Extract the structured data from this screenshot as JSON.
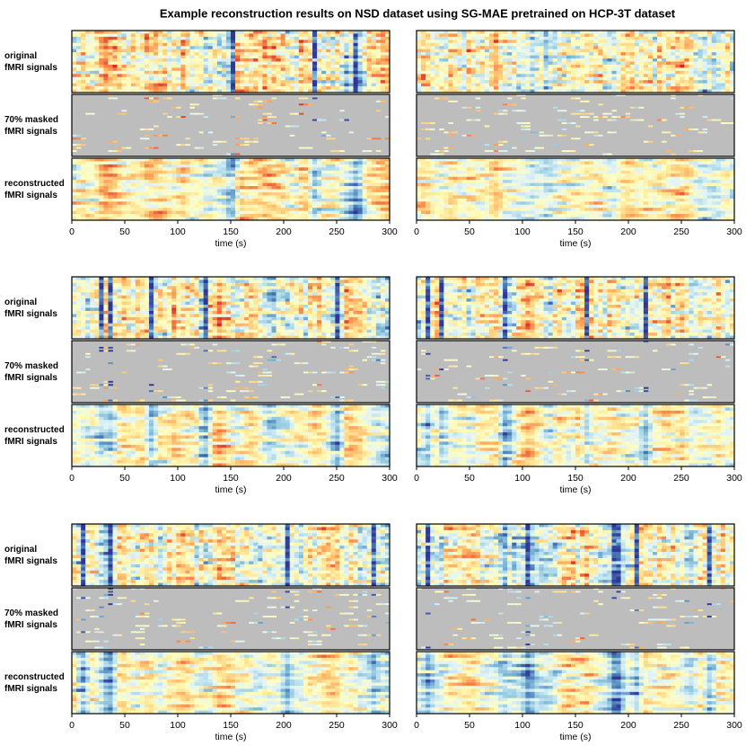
{
  "title": "Example reconstruction results on NSD dataset using SG-MAE pretrained on HCP-3T dataset",
  "chart_data": [
    {
      "type": "heatmap",
      "xlabel": "time (s)",
      "xlim": [
        0,
        300
      ],
      "xticks": [
        0,
        50,
        100,
        150,
        200,
        250,
        300
      ],
      "panel_labels": [
        [
          "original",
          "fMRI signals"
        ],
        [
          "70% masked",
          "fMRI signals"
        ],
        [
          "reconstructed",
          "fMRI signals"
        ]
      ]
    },
    {
      "type": "heatmap",
      "xlabel": "time (s)",
      "xlim": [
        0,
        300
      ],
      "xticks": [
        0,
        50,
        100,
        150,
        200,
        250,
        300
      ]
    },
    {
      "type": "heatmap",
      "xlabel": "time (s)",
      "xlim": [
        0,
        300
      ],
      "xticks": [
        0,
        50,
        100,
        150,
        200,
        250,
        300
      ],
      "panel_labels": [
        [
          "original",
          "fMRI signals"
        ],
        [
          "70% masked",
          "fMRI signals"
        ],
        [
          "reconstructed",
          "fMRI signals"
        ]
      ]
    },
    {
      "type": "heatmap",
      "xlabel": "time (s)",
      "xlim": [
        0,
        300
      ],
      "xticks": [
        0,
        50,
        100,
        150,
        200,
        250,
        300
      ]
    },
    {
      "type": "heatmap",
      "xlabel": "time (s)",
      "xlim": [
        0,
        300
      ],
      "xticks": [
        0,
        50,
        100,
        150,
        200,
        250,
        300
      ],
      "panel_labels": [
        [
          "original",
          "fMRI signals"
        ],
        [
          "70% masked",
          "fMRI signals"
        ],
        [
          "reconstructed",
          "fMRI signals"
        ]
      ]
    },
    {
      "type": "heatmap",
      "xlabel": "time (s)",
      "xlim": [
        0,
        300
      ],
      "xticks": [
        0,
        50,
        100,
        150,
        200,
        250,
        300
      ]
    }
  ]
}
